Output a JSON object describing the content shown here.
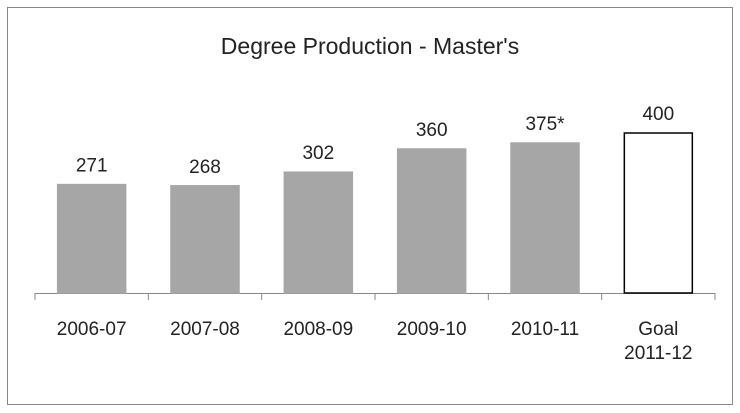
{
  "chart_data": {
    "type": "bar",
    "title": "Degree Production - Master's",
    "categories": [
      "2006-07",
      "2007-08",
      "2008-09",
      "2009-10",
      "2010-11",
      "Goal 2011-12"
    ],
    "values": [
      271,
      268,
      302,
      360,
      375,
      400
    ],
    "value_labels": [
      "271",
      "268",
      "302",
      "360",
      "375*",
      "400"
    ],
    "colors": [
      "#a6a6a6",
      "#a6a6a6",
      "#a6a6a6",
      "#a6a6a6",
      "#a6a6a6",
      "#ffffff"
    ],
    "edgecolors": [
      "#a6a6a6",
      "#a6a6a6",
      "#a6a6a6",
      "#a6a6a6",
      "#a6a6a6",
      "#000000"
    ]
  }
}
